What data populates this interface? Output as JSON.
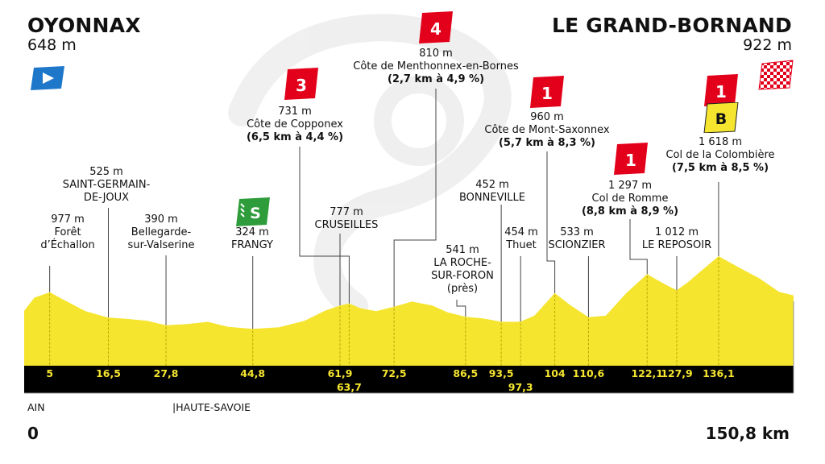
{
  "start": {
    "town": "OYONNAX",
    "altitude": "648 m"
  },
  "finish": {
    "town": "LE GRAND-BORNAND",
    "altitude": "922 m"
  },
  "departments": [
    "AIN",
    "|HAUTE-SAVOIE"
  ],
  "distance_start": "0",
  "distance_end": "150,8 km",
  "climbs": [
    {
      "category": "4",
      "altitude": "810 m",
      "name": "Côte de Menthonnex-en-Bornes",
      "detail": "(2,7 km à 4,9 %)"
    },
    {
      "category": "3",
      "altitude": "731 m",
      "name": "Côte de Copponex",
      "detail": "(6,5 km à 4,4 %)"
    },
    {
      "category": "1",
      "altitude": "960 m",
      "name": "Côte de Mont-Saxonnex",
      "detail": "(5,7 km à 8,3 %)"
    },
    {
      "category": "1",
      "altitude": "1 297 m",
      "name": "Col de Romme",
      "detail": "(8,8 km à 8,9 %)"
    },
    {
      "category": "1",
      "bonus": "B",
      "altitude": "1 618 m",
      "name": "Col de la Colombière",
      "detail": "(7,5 km à 8,5 %)"
    }
  ],
  "sprint": {
    "label": "S"
  },
  "places": [
    {
      "altitude": "977 m",
      "lines": [
        "Forêt",
        "d’Échallon"
      ]
    },
    {
      "altitude": "525 m",
      "lines": [
        "SAINT-GERMAIN-",
        "DE-JOUX"
      ]
    },
    {
      "altitude": "390 m",
      "lines": [
        "Bellegarde-",
        "sur-Valserine"
      ]
    },
    {
      "altitude": "324 m",
      "lines": [
        "FRANGY"
      ]
    },
    {
      "altitude": "777 m",
      "lines": [
        "CRUSEILLES"
      ]
    },
    {
      "altitude": "541 m",
      "lines": [
        "LA ROCHE-",
        "SUR-FORON",
        "(près)"
      ]
    },
    {
      "altitude": "452 m",
      "lines": [
        "BONNEVILLE"
      ]
    },
    {
      "altitude": "454 m",
      "lines": [
        "Thuet"
      ]
    },
    {
      "altitude": "533 m",
      "lines": [
        "SCIONZIER"
      ]
    },
    {
      "altitude": "1 012 m",
      "lines": [
        "LE REPOSOIR"
      ]
    }
  ],
  "chart_data": {
    "type": "area",
    "title": "",
    "xlabel": "",
    "ylabel": "",
    "x_unit": "km",
    "xlim": [
      0,
      150.8
    ],
    "grid": false,
    "legend": "none",
    "fill_color": "#f5e52f",
    "band_color": "#000000",
    "tick_color": "#f5e52f",
    "profile": {
      "km": [
        0,
        2,
        5,
        8,
        12,
        16.5,
        20,
        24,
        27.8,
        32,
        36,
        40,
        44.8,
        50,
        55,
        59,
        61.9,
        63.7,
        66,
        69,
        72.5,
        76,
        80,
        83,
        86.5,
        90,
        93.5,
        96,
        97.3,
        100,
        104,
        107,
        110.6,
        114,
        118,
        122.1,
        124,
        126,
        127.9,
        130,
        133,
        136.1,
        140,
        144,
        148,
        150.8
      ],
      "altitude": [
        648,
        880,
        977,
        830,
        640,
        525,
        505,
        470,
        390,
        410,
        450,
        360,
        324,
        355,
        470,
        650,
        740,
        777,
        690,
        640,
        720,
        810,
        740,
        620,
        541,
        510,
        452,
        450,
        454,
        560,
        960,
        750,
        533,
        560,
        960,
        1297,
        1200,
        1100,
        1012,
        1150,
        1380,
        1618,
        1420,
        1230,
        980,
        922
      ]
    },
    "kilometre_markers": [
      {
        "km": 5,
        "label": "5"
      },
      {
        "km": 16.5,
        "label": "16,5"
      },
      {
        "km": 27.8,
        "label": "27,8"
      },
      {
        "km": 44.8,
        "label": "44,8"
      },
      {
        "km": 61.9,
        "label": "61,9"
      },
      {
        "km": 63.7,
        "label": "63,7"
      },
      {
        "km": 72.5,
        "label": "72,5"
      },
      {
        "km": 86.5,
        "label": "86,5"
      },
      {
        "km": 93.5,
        "label": "93,5"
      },
      {
        "km": 97.3,
        "label": "97,3"
      },
      {
        "km": 104,
        "label": "104"
      },
      {
        "km": 110.6,
        "label": "110,6"
      },
      {
        "km": 122.1,
        "label": "122,1"
      },
      {
        "km": 127.9,
        "label": "127,9"
      },
      {
        "km": 136.1,
        "label": "136,1"
      }
    ],
    "category_colors": {
      "climb": "#e3001b",
      "sprint": "#2e9c3a",
      "bonus": "#f5e52f",
      "start": "#1f77c9"
    }
  }
}
